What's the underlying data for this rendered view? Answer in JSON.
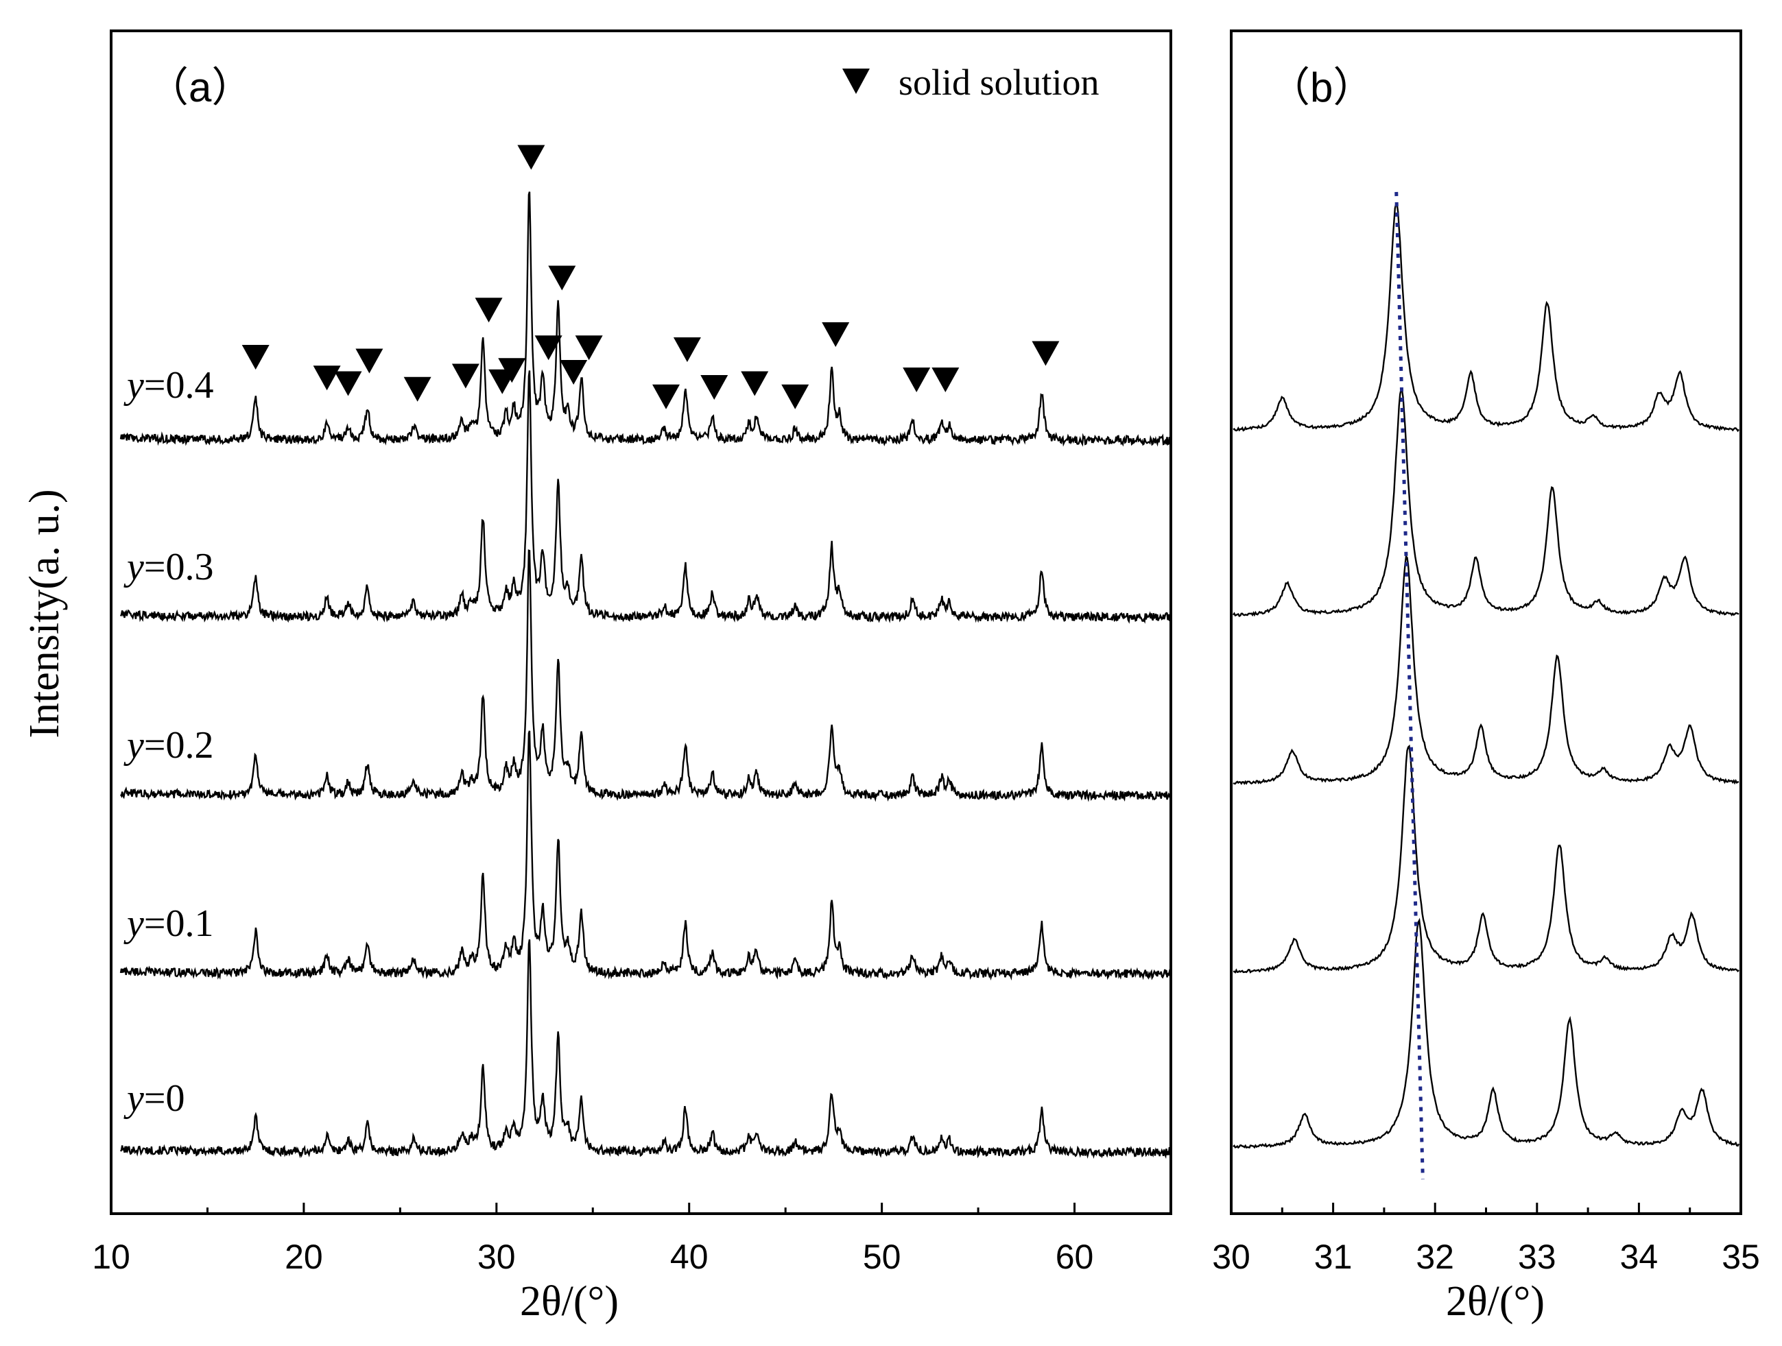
{
  "chart_data": [
    {
      "panel": "a",
      "type": "line",
      "panel_label": "（a）",
      "xlabel": "2θ/(°)",
      "ylabel": "Intensity(a. u.)",
      "xlim": [
        10,
        65
      ],
      "xticks": [
        10,
        20,
        30,
        40,
        50,
        60
      ],
      "xtick_labels": [
        "10",
        "20",
        "30",
        "40",
        "50",
        "60"
      ],
      "legend": {
        "label": "solid solution",
        "marker": "filled-down-triangle",
        "placement": "top-right"
      },
      "series": [
        {
          "name": "y=0",
          "var": "y",
          "value": "=0",
          "baseline": 0,
          "scale": 0.85
        },
        {
          "name": "y=0.1",
          "var": "y",
          "value": "=0.1",
          "baseline": 1,
          "scale": 1.0
        },
        {
          "name": "y=0.2",
          "var": "y",
          "value": "=0.2",
          "baseline": 2,
          "scale": 1.0
        },
        {
          "name": "y=0.3",
          "var": "y",
          "value": "=0.3",
          "baseline": 3,
          "scale": 1.0
        },
        {
          "name": "y=0.4",
          "var": "y",
          "value": "=0.4",
          "baseline": 4,
          "scale": 1.0
        }
      ],
      "peaks": [
        {
          "pos": 17.5,
          "h": 0.22
        },
        {
          "pos": 21.2,
          "h": 0.1
        },
        {
          "pos": 22.3,
          "h": 0.07
        },
        {
          "pos": 23.3,
          "h": 0.17
        },
        {
          "pos": 25.7,
          "h": 0.08
        },
        {
          "pos": 28.2,
          "h": 0.11
        },
        {
          "pos": 28.7,
          "h": 0.07
        },
        {
          "pos": 29.3,
          "h": 0.52
        },
        {
          "pos": 30.5,
          "h": 0.12
        },
        {
          "pos": 30.9,
          "h": 0.14
        },
        {
          "pos": 31.7,
          "h": 1.3
        },
        {
          "pos": 32.4,
          "h": 0.3
        },
        {
          "pos": 33.2,
          "h": 0.7
        },
        {
          "pos": 33.7,
          "h": 0.12
        },
        {
          "pos": 34.4,
          "h": 0.32
        },
        {
          "pos": 38.7,
          "h": 0.06
        },
        {
          "pos": 39.8,
          "h": 0.27
        },
        {
          "pos": 41.2,
          "h": 0.12
        },
        {
          "pos": 43.1,
          "h": 0.08
        },
        {
          "pos": 43.5,
          "h": 0.12
        },
        {
          "pos": 45.5,
          "h": 0.06
        },
        {
          "pos": 47.4,
          "h": 0.37
        },
        {
          "pos": 47.8,
          "h": 0.12
        },
        {
          "pos": 51.6,
          "h": 0.1
        },
        {
          "pos": 53.1,
          "h": 0.09
        },
        {
          "pos": 53.5,
          "h": 0.07
        },
        {
          "pos": 58.3,
          "h": 0.26
        }
      ],
      "solid_solution_markers": [
        {
          "pos": 17.5,
          "h": 0.44
        },
        {
          "pos": 21.2,
          "h": 0.33
        },
        {
          "pos": 22.3,
          "h": 0.3
        },
        {
          "pos": 23.4,
          "h": 0.42
        },
        {
          "pos": 25.9,
          "h": 0.27
        },
        {
          "pos": 28.4,
          "h": 0.34
        },
        {
          "pos": 30.3,
          "h": 0.31
        },
        {
          "pos": 30.8,
          "h": 0.37
        },
        {
          "pos": 29.6,
          "h": 0.69
        },
        {
          "pos": 31.8,
          "h": 1.5
        },
        {
          "pos": 32.7,
          "h": 0.49
        },
        {
          "pos": 33.4,
          "h": 0.86
        },
        {
          "pos": 34.0,
          "h": 0.36
        },
        {
          "pos": 34.8,
          "h": 0.49
        },
        {
          "pos": 38.8,
          "h": 0.23
        },
        {
          "pos": 39.9,
          "h": 0.48
        },
        {
          "pos": 41.3,
          "h": 0.28
        },
        {
          "pos": 43.4,
          "h": 0.3
        },
        {
          "pos": 45.5,
          "h": 0.23
        },
        {
          "pos": 47.6,
          "h": 0.56
        },
        {
          "pos": 51.8,
          "h": 0.32
        },
        {
          "pos": 53.3,
          "h": 0.32
        },
        {
          "pos": 58.5,
          "h": 0.46
        }
      ]
    },
    {
      "panel": "b",
      "type": "line",
      "panel_label": "（b）",
      "xlabel": "2θ/(°)",
      "xlim": [
        30,
        35
      ],
      "xticks": [
        30,
        31,
        32,
        33,
        34,
        35
      ],
      "xtick_labels": [
        "30",
        "31",
        "32",
        "33",
        "34",
        "35"
      ],
      "series": [
        {
          "name": "y=0",
          "baseline": 0,
          "shift": 0.22
        },
        {
          "name": "y=0.1",
          "baseline": 1,
          "shift": 0.12
        },
        {
          "name": "y=0.2",
          "baseline": 2,
          "shift": 0.1
        },
        {
          "name": "y=0.3",
          "baseline": 3,
          "shift": 0.05
        },
        {
          "name": "y=0.4",
          "baseline": 4,
          "shift": 0.0
        }
      ],
      "peaks": [
        {
          "pos": 30.5,
          "h": 0.14,
          "w": 0.07
        },
        {
          "pos": 31.62,
          "h": 1.0,
          "w": 0.08
        },
        {
          "pos": 32.35,
          "h": 0.24,
          "w": 0.06
        },
        {
          "pos": 33.1,
          "h": 0.56,
          "w": 0.07
        },
        {
          "pos": 33.55,
          "h": 0.05,
          "w": 0.06
        },
        {
          "pos": 34.2,
          "h": 0.14,
          "w": 0.07
        },
        {
          "pos": 34.4,
          "h": 0.24,
          "w": 0.07
        }
      ],
      "guide_line": {
        "style": "dotted",
        "color": "#1f2a8a",
        "from": {
          "x": 31.62,
          "series": "y=0.4"
        },
        "to": {
          "x": 31.88,
          "series": "y=0"
        }
      }
    }
  ]
}
